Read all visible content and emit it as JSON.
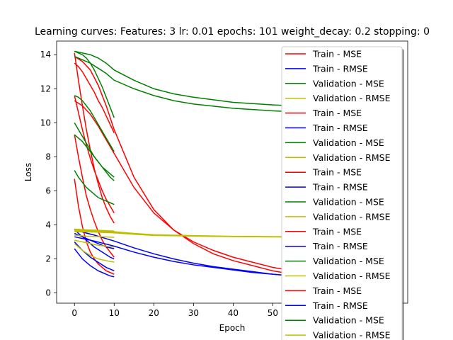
{
  "chart_data": {
    "type": "line",
    "title": "Learning curves: Features: 3 lr: 0.01 epochs: 101 weight_decay: 0.2 stopping: 0",
    "xlabel": "Epoch",
    "ylabel": "Loss",
    "xlim": [
      -4.5,
      84
    ],
    "ylim": [
      -0.6,
      14.8
    ],
    "xticks": [
      0,
      10,
      20,
      30,
      40,
      50
    ],
    "yticks": [
      0,
      2,
      4,
      6,
      8,
      10,
      12,
      14
    ],
    "grid": false,
    "legend_position": "top-right",
    "colors": {
      "Train - MSE": "#ff0000",
      "Train - RMSE": "#0000ff",
      "Validation - MSE": "#008000",
      "Validation - RMSE": "#bfbf00"
    },
    "legend": [
      "Train - MSE",
      "Train - RMSE",
      "Validation - MSE",
      "Validation - RMSE",
      "Train - MSE",
      "Train - RMSE",
      "Validation - MSE",
      "Validation - RMSE",
      "Train - MSE",
      "Train - RMSE",
      "Validation - MSE",
      "Validation - RMSE",
      "Train - MSE",
      "Train - RMSE",
      "Validation - MSE",
      "Validation - RMSE",
      "Train - MSE",
      "Train - RMSE",
      "Validation - MSE",
      "Validation - RMSE"
    ],
    "series": [
      {
        "name": "Train - MSE",
        "x": [
          0,
          1,
          2,
          3,
          4,
          5,
          6,
          7,
          8,
          9,
          10
        ],
        "y": [
          14.1,
          12.5,
          11.0,
          9.6,
          8.4,
          7.3,
          6.4,
          5.6,
          5.0,
          4.5,
          4.1
        ]
      },
      {
        "name": "Train - MSE",
        "x": [
          0,
          1,
          2,
          3,
          4,
          5,
          6,
          7,
          8,
          9,
          10
        ],
        "y": [
          13.5,
          13.3,
          13.0,
          12.6,
          12.2,
          11.8,
          11.3,
          10.9,
          10.4,
          9.9,
          9.4
        ]
      },
      {
        "name": "Train - MSE",
        "x": [
          0,
          1,
          2,
          3,
          4,
          5,
          6,
          7,
          8,
          9,
          10
        ],
        "y": [
          11.6,
          10.6,
          9.6,
          8.7,
          7.9,
          7.2,
          6.6,
          6.0,
          5.5,
          5.1,
          4.7
        ]
      },
      {
        "name": "Train - MSE",
        "x": [
          0,
          1,
          2,
          3,
          4,
          5,
          6,
          7,
          8,
          9,
          10
        ],
        "y": [
          9.3,
          8.0,
          6.8,
          5.7,
          4.9,
          4.2,
          3.6,
          3.1,
          2.7,
          2.4,
          2.1
        ]
      },
      {
        "name": "Train - MSE",
        "x": [
          0,
          1,
          2,
          3,
          4,
          5,
          6,
          7,
          8,
          9,
          10
        ],
        "y": [
          6.7,
          5.1,
          3.9,
          3.0,
          2.4,
          2.0,
          1.7,
          1.5,
          1.3,
          1.2,
          1.1
        ]
      },
      {
        "name": "Train - MSE",
        "x": [
          0,
          2,
          4,
          6,
          8,
          10,
          15,
          20,
          25,
          30,
          35,
          40,
          45,
          50,
          55,
          60,
          70,
          80
        ],
        "y": [
          13.9,
          13.6,
          13.1,
          12.2,
          11.0,
          9.6,
          6.8,
          4.9,
          3.7,
          2.9,
          2.3,
          1.9,
          1.6,
          1.3,
          1.1,
          1.0,
          0.85,
          0.75
        ]
      },
      {
        "name": "Train - MSE",
        "x": [
          0,
          2,
          4,
          6,
          8,
          10,
          15,
          20,
          25,
          30,
          35,
          40,
          45,
          50,
          55,
          60,
          70,
          80
        ],
        "y": [
          11.3,
          11.0,
          10.5,
          9.8,
          9.0,
          8.2,
          6.2,
          4.7,
          3.7,
          3.0,
          2.5,
          2.1,
          1.8,
          1.5,
          1.3,
          1.1,
          0.9,
          0.8
        ]
      },
      {
        "name": "Train - RMSE",
        "x": [
          0,
          1,
          2,
          3,
          4,
          5,
          6,
          7,
          8,
          9,
          10
        ],
        "y": [
          3.75,
          3.5,
          3.3,
          3.1,
          2.9,
          2.7,
          2.55,
          2.4,
          2.25,
          2.1,
          2.0
        ]
      },
      {
        "name": "Train - RMSE",
        "x": [
          0,
          1,
          2,
          3,
          4,
          5,
          6,
          7,
          8,
          9,
          10
        ],
        "y": [
          3.0,
          2.75,
          2.5,
          2.3,
          2.1,
          1.95,
          1.8,
          1.65,
          1.5,
          1.4,
          1.3
        ]
      },
      {
        "name": "Train - RMSE",
        "x": [
          0,
          1,
          2,
          3,
          4,
          5,
          6,
          7,
          8,
          9,
          10
        ],
        "y": [
          2.6,
          2.3,
          2.0,
          1.8,
          1.6,
          1.45,
          1.3,
          1.2,
          1.1,
          1.0,
          0.95
        ]
      },
      {
        "name": "Train - RMSE",
        "x": [
          0,
          1,
          2,
          3,
          4,
          5,
          6,
          7,
          8,
          9,
          10
        ],
        "y": [
          3.5,
          3.4,
          3.3,
          3.2,
          3.1,
          3.0,
          2.9,
          2.8,
          2.7,
          2.65,
          2.6
        ]
      },
      {
        "name": "Train - RMSE",
        "x": [
          0,
          5,
          10,
          15,
          20,
          25,
          30,
          35,
          40,
          45,
          50,
          55,
          60,
          70,
          80
        ],
        "y": [
          3.7,
          3.4,
          3.05,
          2.65,
          2.3,
          2.0,
          1.75,
          1.55,
          1.4,
          1.25,
          1.1,
          1.0,
          0.95,
          0.85,
          0.8
        ]
      },
      {
        "name": "Train - RMSE",
        "x": [
          0,
          5,
          10,
          15,
          20,
          25,
          30,
          35,
          40,
          45,
          50,
          55,
          60,
          70,
          80
        ],
        "y": [
          3.3,
          3.05,
          2.75,
          2.4,
          2.1,
          1.85,
          1.65,
          1.5,
          1.35,
          1.2,
          1.1,
          1.0,
          0.95,
          0.85,
          0.8
        ]
      },
      {
        "name": "Validation - MSE",
        "x": [
          0,
          1,
          2,
          3,
          4,
          5,
          6,
          7,
          8,
          9,
          10
        ],
        "y": [
          14.2,
          14.1,
          14.0,
          13.8,
          13.5,
          13.1,
          12.6,
          12.1,
          11.5,
          10.9,
          10.3
        ]
      },
      {
        "name": "Validation - MSE",
        "x": [
          0,
          1,
          2,
          3,
          4,
          5,
          6,
          7,
          8,
          9,
          10
        ],
        "y": [
          11.6,
          11.5,
          11.3,
          11.0,
          10.7,
          10.3,
          9.9,
          9.5,
          9.1,
          8.7,
          8.3
        ]
      },
      {
        "name": "Validation - MSE",
        "x": [
          0,
          1,
          2,
          3,
          4,
          5,
          6,
          7,
          8,
          9,
          10
        ],
        "y": [
          10.0,
          9.6,
          9.2,
          8.8,
          8.4,
          8.0,
          7.7,
          7.4,
          7.1,
          6.8,
          6.6
        ]
      },
      {
        "name": "Validation - MSE",
        "x": [
          0,
          1,
          2,
          3,
          4,
          5,
          6,
          7,
          8,
          9,
          10
        ],
        "y": [
          9.3,
          9.1,
          8.9,
          8.6,
          8.3,
          8.0,
          7.7,
          7.4,
          7.2,
          7.0,
          6.8
        ]
      },
      {
        "name": "Validation - MSE",
        "x": [
          0,
          1,
          2,
          3,
          4,
          5,
          6,
          7,
          8,
          9,
          10
        ],
        "y": [
          7.2,
          6.8,
          6.5,
          6.2,
          6.0,
          5.8,
          5.6,
          5.5,
          5.4,
          5.3,
          5.2
        ]
      },
      {
        "name": "Validation - MSE",
        "x": [
          0,
          2,
          4,
          6,
          8,
          10,
          15,
          20,
          25,
          30,
          40,
          50,
          60,
          70,
          80
        ],
        "y": [
          14.2,
          14.1,
          14.0,
          13.8,
          13.5,
          13.1,
          12.5,
          12.0,
          11.7,
          11.5,
          11.2,
          11.05,
          10.95,
          10.9,
          10.85
        ]
      },
      {
        "name": "Validation - MSE",
        "x": [
          0,
          2,
          4,
          6,
          8,
          10,
          15,
          20,
          25,
          30,
          40,
          50,
          60,
          70,
          80
        ],
        "y": [
          13.9,
          13.7,
          13.5,
          13.2,
          12.9,
          12.5,
          12.0,
          11.6,
          11.3,
          11.1,
          10.85,
          10.7,
          10.6,
          10.55,
          10.5
        ]
      },
      {
        "name": "Validation - RMSE",
        "x": [
          0,
          1,
          2,
          3,
          4,
          5,
          6,
          7,
          8,
          9,
          10
        ],
        "y": [
          3.75,
          3.74,
          3.72,
          3.71,
          3.7,
          3.69,
          3.68,
          3.67,
          3.66,
          3.65,
          3.64
        ]
      },
      {
        "name": "Validation - RMSE",
        "x": [
          0,
          1,
          2,
          3,
          4,
          5,
          6,
          7,
          8,
          9,
          10
        ],
        "y": [
          3.4,
          3.38,
          3.36,
          3.34,
          3.33,
          3.32,
          3.31,
          3.3,
          3.29,
          3.28,
          3.27
        ]
      },
      {
        "name": "Validation - RMSE",
        "x": [
          0,
          1,
          2,
          3,
          4,
          5,
          6,
          7,
          8,
          9,
          10
        ],
        "y": [
          3.1,
          3.05,
          3.0,
          2.95,
          2.9,
          2.85,
          2.8,
          2.77,
          2.74,
          2.72,
          2.7
        ]
      },
      {
        "name": "Validation - RMSE",
        "x": [
          0,
          1,
          2,
          3,
          4,
          5,
          6,
          7,
          8,
          9,
          10
        ],
        "y": [
          2.9,
          2.7,
          2.5,
          2.35,
          2.2,
          2.1,
          2.0,
          1.95,
          1.9,
          1.85,
          1.82
        ]
      },
      {
        "name": "Validation - RMSE",
        "x": [
          0,
          5,
          10,
          15,
          20,
          30,
          40,
          50,
          60,
          70,
          80
        ],
        "y": [
          3.7,
          3.66,
          3.6,
          3.5,
          3.42,
          3.37,
          3.33,
          3.31,
          3.3,
          3.29,
          3.29
        ]
      },
      {
        "name": "Validation - RMSE",
        "x": [
          0,
          5,
          10,
          15,
          20,
          30,
          40,
          50,
          60,
          70,
          80
        ],
        "y": [
          3.65,
          3.62,
          3.56,
          3.47,
          3.4,
          3.35,
          3.32,
          3.3,
          3.29,
          3.28,
          3.28
        ]
      },
      {
        "name": "Validation - RMSE",
        "x": [
          0,
          5,
          10,
          15,
          20,
          30,
          40,
          50,
          60,
          70,
          80
        ],
        "y": [
          3.6,
          3.58,
          3.53,
          3.45,
          3.38,
          3.34,
          3.31,
          3.29,
          3.28,
          3.27,
          3.27
        ]
      }
    ]
  }
}
